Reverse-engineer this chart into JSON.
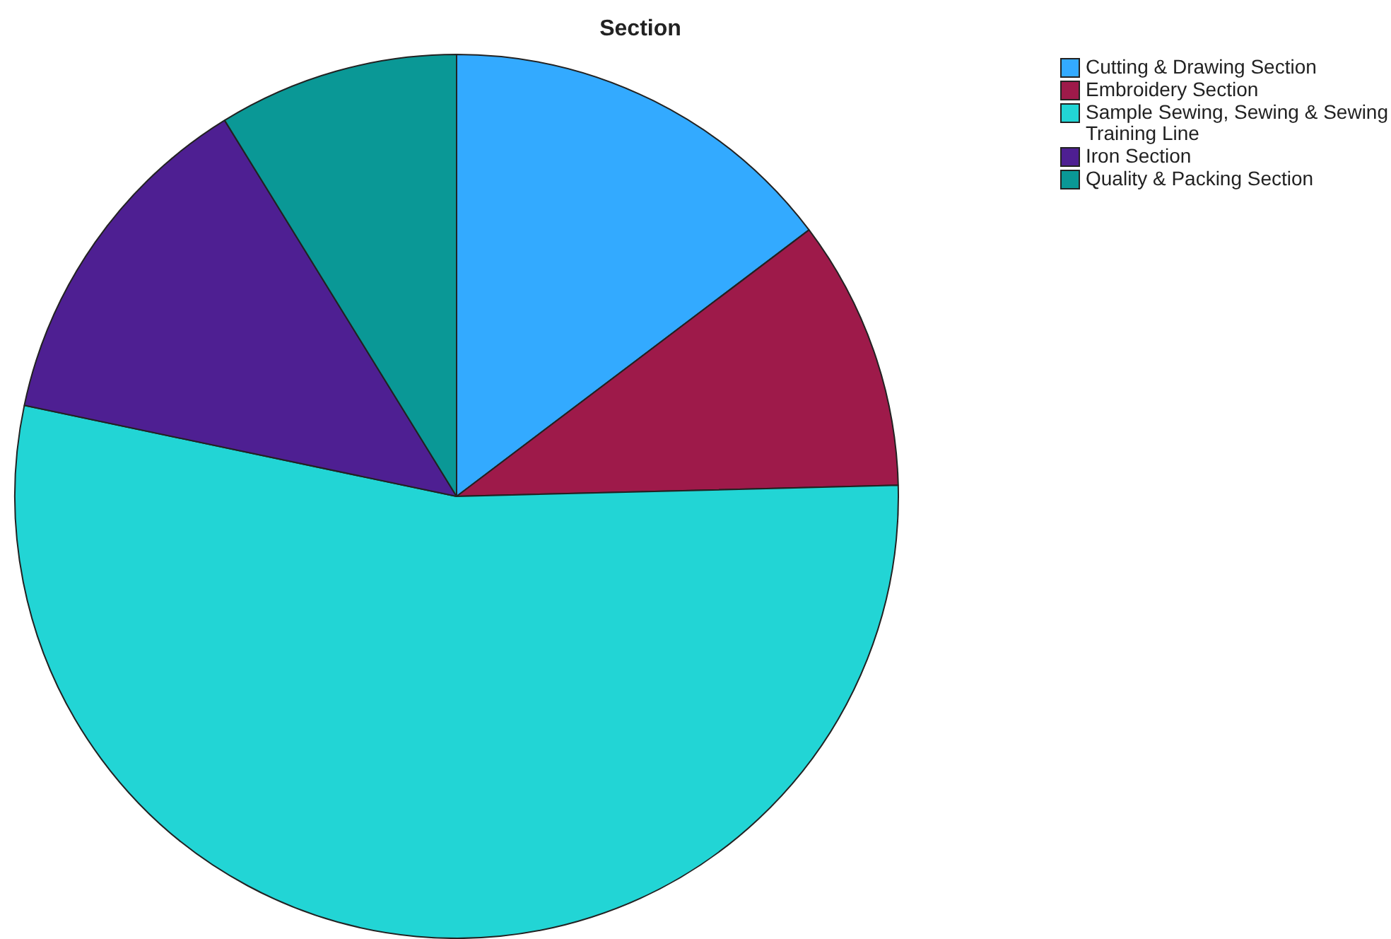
{
  "chart_data": {
    "type": "pie",
    "title": "Section",
    "categories": [
      "Cutting & Drawing Section",
      "Embroidery Section",
      "Sample Sewing, Sewing & Sewing Training Line",
      "Iron Section",
      "Quality & Packing Section"
    ],
    "values": [
      14.7,
      9.9,
      53.7,
      12.9,
      8.8
    ],
    "colors": [
      "#33aaff",
      "#9e1a4a",
      "#22d5d5",
      "#4e1f92",
      "#0a9896"
    ],
    "legend": "top right"
  }
}
